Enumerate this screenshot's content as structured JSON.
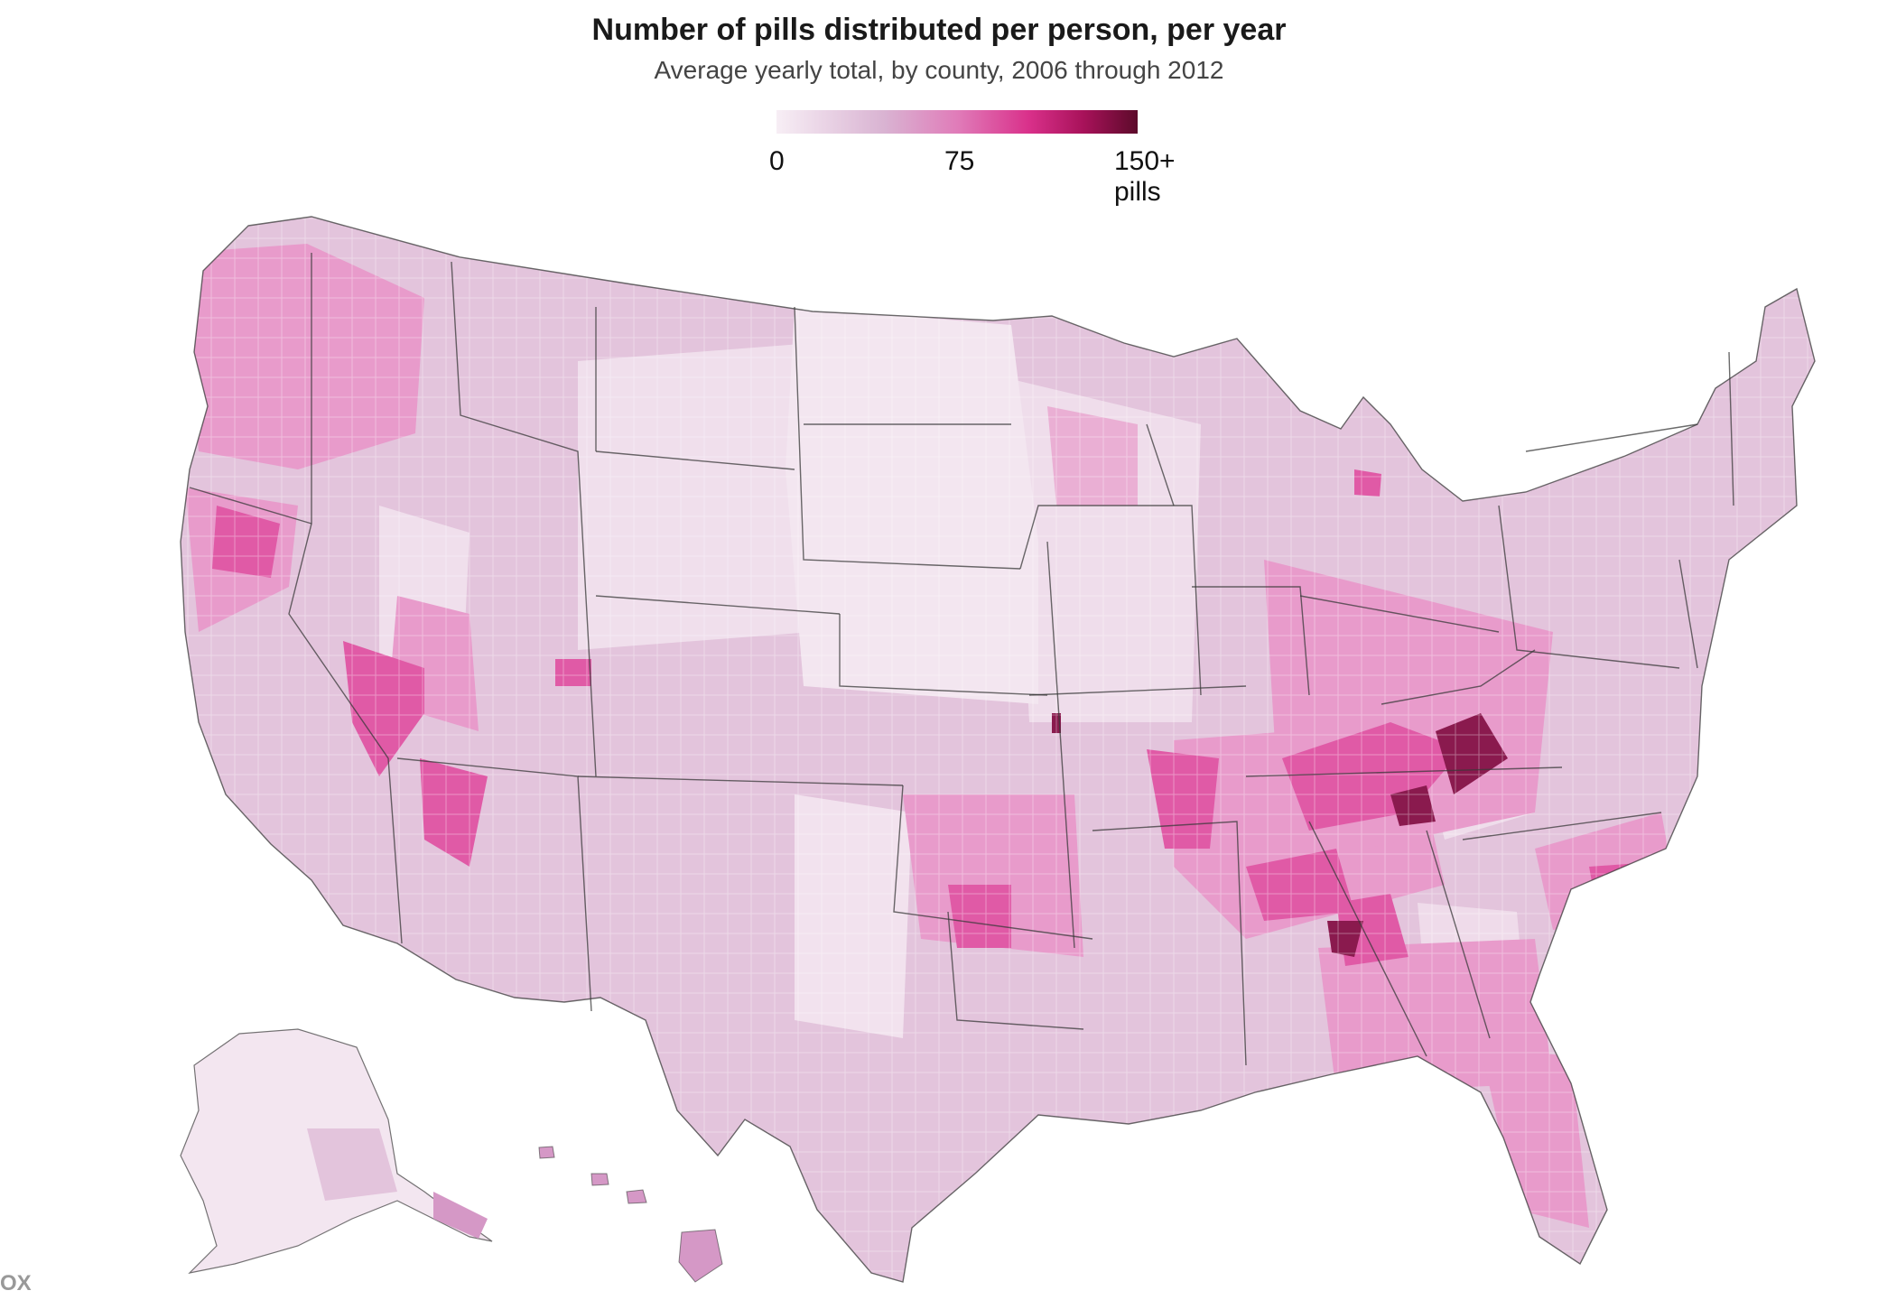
{
  "header": {
    "title": "Number of pills distributed per person, per year",
    "subtitle": "Average yearly total, by county, 2006 through 2012"
  },
  "legend": {
    "label_min": "0",
    "label_mid": "75",
    "label_max": "150+ pills",
    "scale_min": 0,
    "scale_mid": 75,
    "scale_max": 150,
    "colors": [
      "#f7eef5",
      "#e6c6df",
      "#d598c6",
      "#e05aa6",
      "#c71f6e",
      "#8a0d3e",
      "#5c0a2a"
    ]
  },
  "map": {
    "state_border_color": "#3a3a3a",
    "base_color": "#e3c4dc",
    "light_color": "#f3e6f0",
    "hot_color": "#e05aa6",
    "darkest_color": "#7a1240"
  },
  "watermark": "OX"
}
